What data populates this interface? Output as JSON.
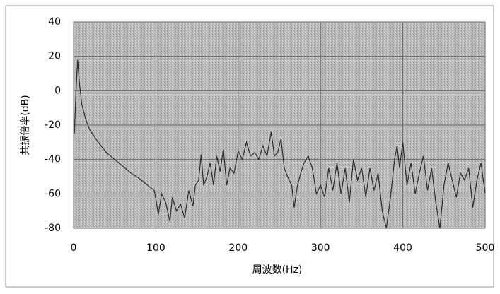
{
  "chart_data": {
    "type": "line",
    "x_label": "周波数(Hz)",
    "y_label": "共振倍率(dB)",
    "xlim": [
      0,
      500
    ],
    "xticks": [
      0,
      100,
      200,
      300,
      400,
      500
    ],
    "ylim": [
      -80,
      40
    ],
    "yticks": [
      -80,
      -60,
      -40,
      -20,
      0,
      20,
      40
    ],
    "grid": true,
    "series": [
      {
        "color": "#2a2a2a",
        "x": [
          1,
          3,
          5,
          7,
          10,
          15,
          20,
          30,
          40,
          50,
          60,
          70,
          80,
          90,
          98,
          100,
          103,
          107,
          112,
          117,
          120,
          125,
          130,
          135,
          140,
          145,
          148,
          152,
          155,
          158,
          162,
          166,
          170,
          174,
          178,
          182,
          186,
          190,
          195,
          200,
          205,
          210,
          215,
          220,
          225,
          230,
          235,
          240,
          244,
          248,
          252,
          256,
          260,
          265,
          268,
          272,
          276,
          280,
          285,
          290,
          295,
          300,
          305,
          310,
          315,
          320,
          325,
          330,
          335,
          340,
          345,
          350,
          355,
          360,
          365,
          370,
          375,
          380,
          385,
          390,
          393,
          396,
          400,
          405,
          410,
          415,
          420,
          425,
          430,
          435,
          440,
          445,
          450,
          455,
          460,
          465,
          470,
          475,
          480,
          485,
          490,
          495,
          500
        ],
        "values": [
          -25,
          0,
          18,
          5,
          -8,
          -17,
          -23,
          -30,
          -36,
          -40,
          -44,
          -48,
          -51,
          -55,
          -58,
          -63,
          -72,
          -60,
          -65,
          -76,
          -62,
          -70,
          -66,
          -74,
          -58,
          -67,
          -55,
          -52,
          -37,
          -55,
          -50,
          -42,
          -55,
          -38,
          -47,
          -34,
          -55,
          -45,
          -48,
          -35,
          -40,
          -30,
          -38,
          -36,
          -40,
          -32,
          -38,
          -24,
          -38,
          -36,
          -28,
          -45,
          -50,
          -55,
          -68,
          -55,
          -48,
          -42,
          -38,
          -45,
          -60,
          -55,
          -62,
          -45,
          -58,
          -42,
          -60,
          -45,
          -65,
          -40,
          -52,
          -45,
          -62,
          -45,
          -58,
          -48,
          -70,
          -80,
          -62,
          -40,
          -32,
          -45,
          -30,
          -55,
          -42,
          -60,
          -48,
          -38,
          -58,
          -45,
          -65,
          -80,
          -55,
          -42,
          -52,
          -62,
          -48,
          -52,
          -45,
          -68,
          -52,
          -42,
          -60
        ]
      }
    ]
  }
}
